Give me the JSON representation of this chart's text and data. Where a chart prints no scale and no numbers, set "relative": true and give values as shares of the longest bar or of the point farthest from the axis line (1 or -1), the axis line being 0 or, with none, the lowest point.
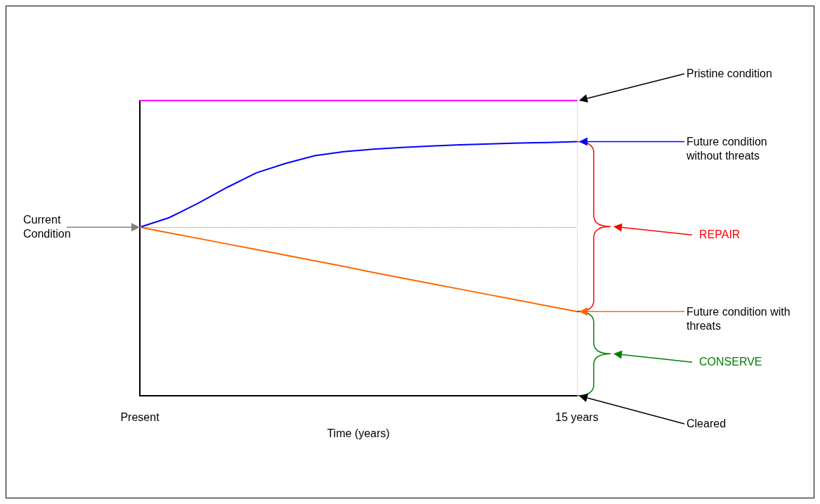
{
  "chart_data": {
    "type": "line",
    "relative": true,
    "xlabel": "Time (years)",
    "categories": [
      "Present",
      null,
      null,
      null,
      null,
      null,
      null,
      null,
      null,
      null,
      null,
      null,
      null,
      null,
      null,
      "15 years"
    ],
    "series": [
      {
        "color": "#ff00ff",
        "values": [
          1,
          1,
          1,
          1,
          1,
          1,
          1,
          1,
          1,
          1,
          1,
          1,
          1,
          1,
          1,
          1
        ]
      },
      {
        "color": "#0000ff",
        "values": [
          0.571,
          0.603,
          0.652,
          0.706,
          0.755,
          0.787,
          0.813,
          0.827,
          0.835,
          0.841,
          0.846,
          0.85,
          0.853,
          0.856,
          0.858,
          0.861
        ]
      },
      {
        "color": "#ff6600",
        "values": [
          0.571,
          0.552,
          0.533,
          0.514,
          0.495,
          0.476,
          0.457,
          0.438,
          0.418,
          0.399,
          0.38,
          0.361,
          0.342,
          0.323,
          0.304,
          0.285
        ]
      }
    ],
    "ref_lines": [
      {
        "axis": "y",
        "value": 0.571,
        "color": "#808080",
        "line_style": "dotted"
      },
      {
        "axis": "x",
        "value": "15 years",
        "color": "#c0c0c0",
        "line_style": "dotted"
      }
    ],
    "annotations": [
      "Current Condition",
      "Pristine condition",
      "Future condition without threats",
      "REPAIR",
      "Future condition with threats",
      "CONSERVE",
      "Cleared"
    ],
    "marker": "none",
    "line_style": "solid"
  }
}
